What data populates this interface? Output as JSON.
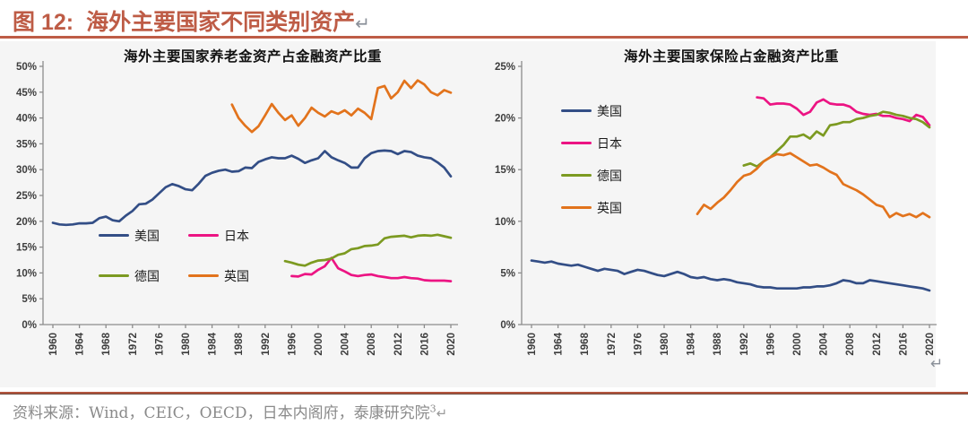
{
  "header": {
    "figure_label": "图 12:",
    "title": "海外主要国家不同类别资产",
    "return_mark": "↵"
  },
  "mid_return_mark": "↵",
  "footer": {
    "source": "资料来源：Wind，CEIC，OECD，日本内阁府，泰康研究院",
    "footnote_ref": "3",
    "return_mark": "↵"
  },
  "colors": {
    "accent_rule": "#BE5C46",
    "figure_background": "#F5F5F5",
    "axis_line": "#8c8c8c",
    "axis_text": "#3d3d3d",
    "source_text": "#8a8a8a",
    "us_blue": "#334E86",
    "japan_pink": "#EC1483",
    "germany_green": "#7C9A21",
    "uk_orange": "#E2731C"
  },
  "chart_data": [
    {
      "type": "line",
      "title": "海外主要国家养老金资产占金融资产比重",
      "xlabel": "",
      "ylabel": "",
      "ylim": [
        0,
        50
      ],
      "ytick_step": 5,
      "ytick_suffix": "%",
      "xlim": [
        1959,
        2021
      ],
      "xticks": [
        1960,
        1964,
        1968,
        1972,
        1976,
        1980,
        1984,
        1988,
        1992,
        1996,
        2000,
        2004,
        2008,
        2012,
        2016,
        2020
      ],
      "grid": false,
      "legend_position": "lower-left 2x2 inside plot",
      "series": [
        {
          "name": "美国",
          "color": "#334E86",
          "start_year": 1960,
          "values": [
            19.7,
            19.4,
            19.3,
            19.4,
            19.6,
            19.6,
            19.7,
            20.6,
            20.9,
            20.2,
            20.0,
            21.1,
            22.0,
            23.3,
            23.4,
            24.2,
            25.4,
            26.6,
            27.2,
            26.8,
            26.2,
            26.0,
            27.3,
            28.8,
            29.4,
            29.8,
            30.0,
            29.6,
            29.7,
            30.4,
            30.3,
            31.5,
            32.0,
            32.4,
            32.2,
            32.2,
            32.7,
            32.1,
            31.3,
            31.8,
            32.2,
            33.6,
            32.4,
            31.8,
            31.3,
            30.4,
            30.4,
            32.2,
            33.2,
            33.6,
            33.7,
            33.6,
            33.0,
            33.6,
            33.4,
            32.7,
            32.4,
            32.2,
            31.4,
            30.4,
            28.7
          ]
        },
        {
          "name": "日本",
          "color": "#EC1483",
          "start_year": 1996,
          "values": [
            9.4,
            9.3,
            9.8,
            9.7,
            10.6,
            11.3,
            12.9,
            10.9,
            10.3,
            9.6,
            9.4,
            9.6,
            9.7,
            9.4,
            9.2,
            9.0,
            9.0,
            9.2,
            9.0,
            8.9,
            8.6,
            8.5,
            8.5,
            8.5,
            8.4
          ]
        },
        {
          "name": "德国",
          "color": "#7C9A21",
          "start_year": 1995,
          "values": [
            12.3,
            12.0,
            11.6,
            11.4,
            12.0,
            12.4,
            12.5,
            12.8,
            13.5,
            13.8,
            14.6,
            14.8,
            15.2,
            15.3,
            15.5,
            16.7,
            17.0,
            17.1,
            17.2,
            16.9,
            17.2,
            17.3,
            17.2,
            17.4,
            17.1,
            16.8
          ]
        },
        {
          "name": "英国",
          "color": "#E2731C",
          "start_year": 1987,
          "values": [
            42.6,
            40.0,
            38.5,
            37.3,
            38.4,
            40.5,
            42.7,
            41.0,
            39.6,
            40.5,
            38.5,
            40.0,
            42.0,
            41.0,
            40.3,
            41.3,
            40.8,
            41.5,
            40.5,
            41.8,
            41.0,
            39.8,
            45.8,
            46.2,
            43.8,
            45.0,
            47.2,
            45.8,
            47.3,
            46.5,
            45.0,
            44.4,
            45.4,
            44.9
          ]
        }
      ]
    },
    {
      "type": "line",
      "title": "海外主要国家保险占金融资产比重",
      "xlabel": "",
      "ylabel": "",
      "ylim": [
        0,
        25
      ],
      "ytick_step": 5,
      "ytick_suffix": "%",
      "xlim": [
        1959,
        2021
      ],
      "xticks": [
        1960,
        1964,
        1968,
        1972,
        1976,
        1980,
        1984,
        1988,
        1992,
        1996,
        2000,
        2004,
        2008,
        2012,
        2016,
        2020
      ],
      "grid": false,
      "legend_position": "upper-left vertical inside plot",
      "series": [
        {
          "name": "美国",
          "color": "#334E86",
          "start_year": 1960,
          "values": [
            6.2,
            6.1,
            6.0,
            6.1,
            5.9,
            5.8,
            5.7,
            5.8,
            5.6,
            5.4,
            5.2,
            5.4,
            5.3,
            5.2,
            4.9,
            5.1,
            5.3,
            5.2,
            5.0,
            4.8,
            4.7,
            4.9,
            5.1,
            4.9,
            4.6,
            4.5,
            4.6,
            4.4,
            4.3,
            4.4,
            4.3,
            4.1,
            4.0,
            3.9,
            3.7,
            3.6,
            3.6,
            3.5,
            3.5,
            3.5,
            3.5,
            3.6,
            3.6,
            3.7,
            3.7,
            3.8,
            4.0,
            4.3,
            4.2,
            4.0,
            4.0,
            4.3,
            4.2,
            4.1,
            4.0,
            3.9,
            3.8,
            3.7,
            3.6,
            3.5,
            3.3
          ]
        },
        {
          "name": "日本",
          "color": "#EC1483",
          "start_year": 1994,
          "values": [
            22.0,
            21.9,
            21.3,
            21.4,
            21.4,
            21.3,
            20.9,
            20.3,
            20.6,
            21.5,
            21.8,
            21.4,
            21.3,
            21.3,
            21.1,
            20.6,
            20.4,
            20.3,
            20.4,
            20.2,
            20.2,
            20.0,
            19.9,
            19.7,
            20.3,
            20.1,
            19.3
          ]
        },
        {
          "name": "德国",
          "color": "#7C9A21",
          "start_year": 1992,
          "values": [
            15.4,
            15.6,
            15.3,
            15.8,
            16.2,
            16.8,
            17.4,
            18.2,
            18.2,
            18.4,
            18.0,
            18.7,
            18.3,
            19.3,
            19.4,
            19.6,
            19.6,
            19.9,
            20.0,
            20.2,
            20.3,
            20.6,
            20.5,
            20.3,
            20.2,
            20.0,
            19.9,
            19.6,
            19.1
          ]
        },
        {
          "name": "英国",
          "color": "#E2731C",
          "start_year": 1985,
          "values": [
            10.7,
            11.6,
            11.2,
            11.8,
            12.3,
            13.0,
            13.8,
            14.4,
            14.6,
            15.1,
            15.8,
            16.2,
            16.5,
            16.4,
            16.6,
            16.2,
            15.8,
            15.4,
            15.5,
            15.2,
            14.8,
            14.5,
            13.6,
            13.3,
            13.0,
            12.6,
            12.1,
            11.6,
            11.4,
            10.4,
            10.8,
            10.5,
            10.7,
            10.4,
            10.8,
            10.4
          ]
        }
      ]
    }
  ]
}
